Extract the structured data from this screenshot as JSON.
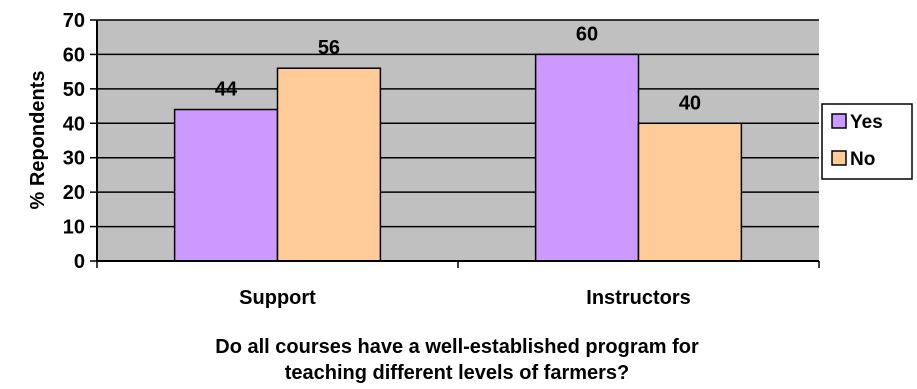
{
  "chart_data": {
    "type": "bar",
    "categories": [
      "Support",
      "Instructors"
    ],
    "series": [
      {
        "name": "Yes",
        "values": [
          44,
          60
        ],
        "color": "#cc99ff"
      },
      {
        "name": "No",
        "values": [
          56,
          40
        ],
        "color": "#ffcc99"
      }
    ],
    "ylabel": "% Repondents",
    "xlabel": "Do all courses have a well-established program for teaching different levels of farmers?",
    "xlabel_lines": [
      "Do all courses have a well-established program for",
      "teaching different levels of farmers?"
    ],
    "ylim": [
      0,
      70
    ],
    "yticks": [
      0,
      10,
      20,
      30,
      40,
      50,
      60,
      70
    ],
    "grid": true,
    "plot_background": "#c0c0c0",
    "legend": "right",
    "data_labels": true
  }
}
